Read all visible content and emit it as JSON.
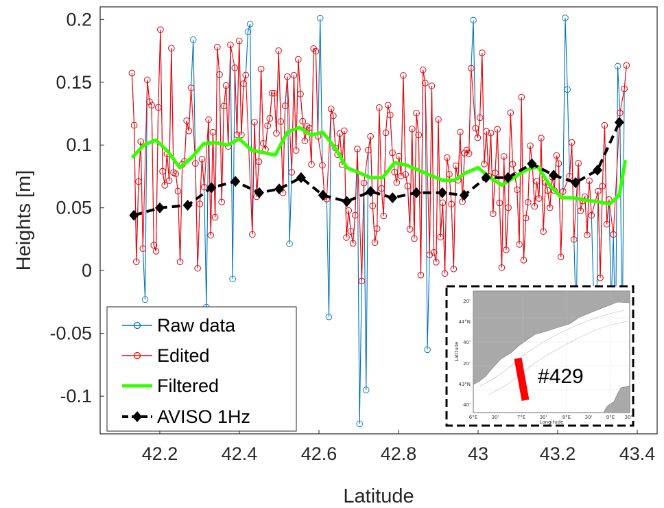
{
  "chart_data": {
    "type": "line",
    "xlabel": "Latitude",
    "ylabel": "Heights [m]",
    "xlim": [
      42.05,
      43.45
    ],
    "ylim": [
      -0.13,
      0.21
    ],
    "xticks": [
      "42.2",
      "42.4",
      "42.6",
      "42.8",
      "43",
      "43.2",
      "43.4"
    ],
    "yticks": [
      "-0.1",
      "-0.05",
      "0",
      "0.05",
      "0.1",
      "0.15",
      "0.2"
    ],
    "legend_position": "bottom-left",
    "series": [
      {
        "name": "Raw data",
        "color": "#0072BD",
        "marker": "circle"
      },
      {
        "name": "Edited",
        "color": "#FF0000",
        "marker": "circle"
      },
      {
        "name": "Filtered",
        "color": "#33FF00"
      },
      {
        "name": "AVISO 1Hz",
        "color": "#000000",
        "marker": "diamond",
        "dashed": true
      }
    ],
    "filtered": {
      "x": [
        42.13,
        42.16,
        42.19,
        42.22,
        42.25,
        42.28,
        42.31,
        42.34,
        42.37,
        42.4,
        42.43,
        42.46,
        42.49,
        42.52,
        42.55,
        42.58,
        42.61,
        42.64,
        42.67,
        42.7,
        42.73,
        42.76,
        42.79,
        42.82,
        42.85,
        42.88,
        42.91,
        42.94,
        42.97,
        43.0,
        43.03,
        43.06,
        43.09,
        43.12,
        43.15,
        43.18,
        43.21,
        43.24,
        43.27,
        43.3,
        43.33,
        43.355,
        43.37
      ],
      "y": [
        0.09,
        0.1,
        0.104,
        0.095,
        0.082,
        0.09,
        0.101,
        0.102,
        0.1,
        0.105,
        0.096,
        0.094,
        0.092,
        0.11,
        0.114,
        0.108,
        0.11,
        0.098,
        0.082,
        0.078,
        0.074,
        0.074,
        0.086,
        0.084,
        0.08,
        0.076,
        0.072,
        0.072,
        0.078,
        0.082,
        0.074,
        0.068,
        0.074,
        0.08,
        0.083,
        0.068,
        0.058,
        0.058,
        0.056,
        0.055,
        0.053,
        0.06,
        0.088
      ]
    },
    "aviso": {
      "x": [
        42.135,
        42.2,
        42.27,
        42.33,
        42.39,
        42.45,
        42.5,
        42.555,
        42.61,
        42.67,
        42.73,
        42.785,
        42.845,
        42.91,
        42.965,
        43.02,
        43.075,
        43.135,
        43.19,
        43.245,
        43.3,
        43.355
      ],
      "y": [
        0.044,
        0.05,
        0.052,
        0.066,
        0.071,
        0.062,
        0.065,
        0.074,
        0.06,
        0.055,
        0.063,
        0.058,
        0.062,
        0.062,
        0.06,
        0.074,
        0.074,
        0.085,
        0.076,
        0.07,
        0.08,
        0.118
      ]
    },
    "raw_range": {
      "x": [
        42.13,
        43.375
      ],
      "sampling_step": 0.0055
    }
  },
  "inset": {
    "label": "#429",
    "lat_ticks": [
      "20'",
      "44°N",
      "40'",
      "20'",
      "43°N",
      "40'"
    ],
    "lon_ticks": [
      "6°E",
      "30'",
      "7°E",
      "30'",
      "8°E",
      "30'",
      "9°E",
      "30'"
    ],
    "xlabel": "Longitude",
    "ylabel": "Latitude",
    "land_color": "#a9a9a9",
    "track_color": "#ff0000"
  }
}
